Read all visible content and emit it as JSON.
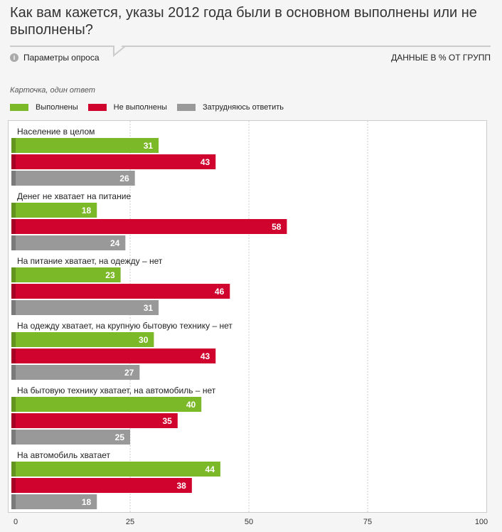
{
  "title": "Как вам кажется, указы 2012 года были в основном выполнены или не выполнены?",
  "params_label": "Параметры опроса",
  "units_label": "ДАННЫЕ В % ОТ ГРУПП",
  "subtitle": "Карточка, один ответ",
  "chart_data": {
    "type": "bar",
    "orientation": "horizontal",
    "categories": [
      "Население в целом",
      "Денег не хватает на питание",
      "На питание хватает, на одежду – нет",
      "На одежду хватает, на крупную бытовую технику – нет",
      "На бытовую технику хватает, на автомобиль – нет",
      "На автомобиль хватает"
    ],
    "series": [
      {
        "name": "Выполнены",
        "color": "#7cb928",
        "values": [
          31,
          18,
          23,
          30,
          40,
          44
        ]
      },
      {
        "name": "Не выполнены",
        "color": "#d0022e",
        "values": [
          43,
          58,
          46,
          43,
          35,
          38
        ]
      },
      {
        "name": "Затрудняюсь ответить",
        "color": "#999999",
        "values": [
          26,
          24,
          31,
          27,
          25,
          18
        ]
      }
    ],
    "xlim": [
      0,
      100
    ],
    "xticks": [
      "0",
      "25",
      "50",
      "75",
      "100"
    ],
    "grid": true,
    "legend": "top-left"
  }
}
